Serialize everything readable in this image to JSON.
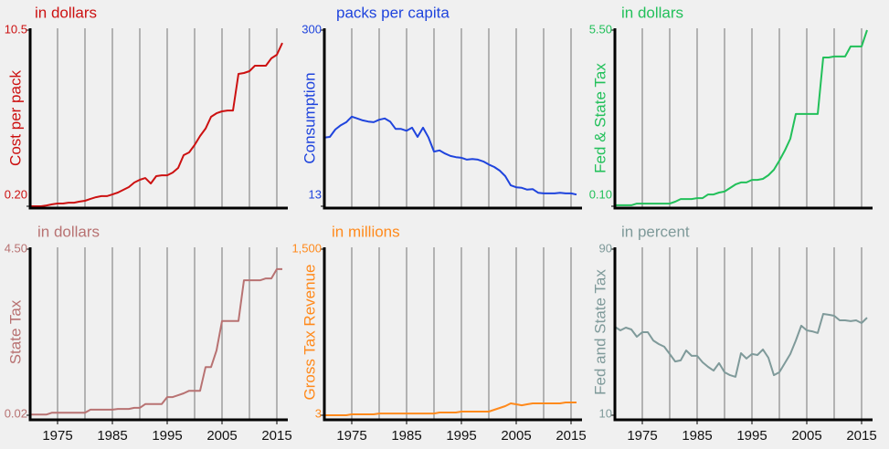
{
  "chart_data": [
    {
      "type": "line",
      "title": "in dollars",
      "ylabel": "Cost per pack",
      "color": "#cc1111",
      "x": [
        1970,
        1971,
        1972,
        1973,
        1974,
        1975,
        1976,
        1977,
        1978,
        1979,
        1980,
        1981,
        1982,
        1983,
        1984,
        1985,
        1986,
        1987,
        1988,
        1989,
        1990,
        1991,
        1992,
        1993,
        1994,
        1995,
        1996,
        1997,
        1998,
        1999,
        2000,
        2001,
        2002,
        2003,
        2004,
        2005,
        2006,
        2007,
        2008,
        2009,
        2010,
        2011,
        2012,
        2013,
        2014,
        2015,
        2016
      ],
      "values": [
        0.2,
        0.2,
        0.2,
        0.25,
        0.31,
        0.36,
        0.36,
        0.41,
        0.41,
        0.47,
        0.52,
        0.63,
        0.73,
        0.79,
        0.79,
        0.89,
        1.0,
        1.16,
        1.32,
        1.59,
        1.75,
        1.85,
        1.53,
        1.96,
        2.01,
        2.01,
        2.17,
        2.44,
        3.19,
        3.35,
        3.78,
        4.31,
        4.74,
        5.43,
        5.64,
        5.75,
        5.8,
        5.8,
        7.94,
        7.99,
        8.1,
        8.42,
        8.42,
        8.42,
        8.85,
        9.06,
        9.75
      ],
      "xlim": [
        1970,
        2017
      ],
      "ylim": [
        0.2,
        10.5
      ],
      "yticks": [
        {
          "value": 0.2,
          "label": "0.20"
        },
        10.5
      ],
      "xgrid": [
        1975,
        1980,
        1985,
        1990,
        1995,
        2000,
        2005,
        2010,
        2015
      ]
    },
    {
      "type": "line",
      "title": "packs per capita",
      "ylabel": "Consumption",
      "color": "#1f44dd",
      "x": [
        1970,
        1971,
        1972,
        1973,
        1974,
        1975,
        1976,
        1977,
        1978,
        1979,
        1980,
        1981,
        1982,
        1983,
        1984,
        1985,
        1986,
        1987,
        1988,
        1989,
        1990,
        1991,
        1992,
        1993,
        1994,
        1995,
        1996,
        1997,
        1998,
        1999,
        2000,
        2001,
        2002,
        2003,
        2004,
        2005,
        2006,
        2007,
        2008,
        2009,
        2010,
        2011,
        2012,
        2013,
        2014,
        2015,
        2016
      ],
      "values": [
        125,
        126,
        138,
        145,
        150,
        159,
        156,
        153,
        151,
        150,
        154,
        156,
        151,
        139,
        139,
        136,
        141,
        126,
        141,
        125,
        102,
        104,
        99,
        95,
        93,
        92,
        89,
        90,
        89,
        86,
        81,
        77,
        71,
        62,
        47,
        44,
        43,
        40,
        41,
        35,
        34,
        34,
        34,
        35,
        34,
        34,
        32
      ],
      "xlim": [
        1970,
        2017
      ],
      "ylim": [
        13,
        300
      ],
      "yticks": [
        13,
        300
      ],
      "xgrid": [
        1975,
        1980,
        1985,
        1990,
        1995,
        2000,
        2005,
        2010,
        2015
      ]
    },
    {
      "type": "line",
      "title": "in dollars",
      "ylabel": "Fed & State Tax",
      "color": "#22c05a",
      "x": [
        1970,
        1971,
        1972,
        1973,
        1974,
        1975,
        1976,
        1977,
        1978,
        1979,
        1980,
        1981,
        1982,
        1983,
        1984,
        1985,
        1986,
        1987,
        1988,
        1989,
        1990,
        1991,
        1992,
        1993,
        1994,
        1995,
        1996,
        1997,
        1998,
        1999,
        2000,
        2001,
        2002,
        2003,
        2004,
        2005,
        2006,
        2007,
        2008,
        2009,
        2010,
        2011,
        2012,
        2013,
        2014,
        2015,
        2016
      ],
      "values": [
        0.13,
        0.13,
        0.13,
        0.13,
        0.18,
        0.18,
        0.18,
        0.18,
        0.18,
        0.18,
        0.18,
        0.24,
        0.32,
        0.32,
        0.32,
        0.35,
        0.35,
        0.46,
        0.46,
        0.52,
        0.55,
        0.66,
        0.77,
        0.83,
        0.83,
        0.91,
        0.91,
        0.94,
        1.05,
        1.22,
        1.5,
        1.81,
        2.17,
        2.93,
        2.93,
        2.93,
        2.93,
        2.93,
        4.66,
        4.66,
        4.69,
        4.69,
        4.69,
        5.0,
        5.0,
        5.0,
        5.5
      ],
      "xlim": [
        1970,
        2017
      ],
      "ylim": [
        0.1,
        5.5
      ],
      "yticks": [
        {
          "value": 0.1,
          "label": "0.10"
        },
        {
          "value": 5.5,
          "label": "5.50"
        }
      ],
      "xgrid": [
        1975,
        1980,
        1985,
        1990,
        1995,
        2000,
        2005,
        2010,
        2015
      ]
    },
    {
      "type": "line",
      "title": "in dollars",
      "ylabel": "State Tax",
      "color": "#b87272",
      "x": [
        1970,
        1971,
        1972,
        1973,
        1974,
        1975,
        1976,
        1977,
        1978,
        1979,
        1980,
        1981,
        1982,
        1983,
        1984,
        1985,
        1986,
        1987,
        1988,
        1989,
        1990,
        1991,
        1992,
        1993,
        1994,
        1995,
        1996,
        1997,
        1998,
        1999,
        2000,
        2001,
        2002,
        2003,
        2004,
        2005,
        2006,
        2007,
        2008,
        2009,
        2010,
        2011,
        2012,
        2013,
        2014,
        2015,
        2016
      ],
      "values": [
        0.04,
        0.04,
        0.04,
        0.04,
        0.09,
        0.09,
        0.09,
        0.09,
        0.09,
        0.09,
        0.09,
        0.17,
        0.17,
        0.17,
        0.17,
        0.17,
        0.19,
        0.19,
        0.19,
        0.22,
        0.22,
        0.32,
        0.32,
        0.32,
        0.32,
        0.51,
        0.51,
        0.56,
        0.61,
        0.68,
        0.68,
        0.68,
        1.32,
        1.32,
        1.77,
        2.56,
        2.56,
        2.56,
        2.56,
        3.66,
        3.66,
        3.66,
        3.66,
        3.71,
        3.71,
        3.96,
        3.96
      ],
      "xlim": [
        1970,
        2017
      ],
      "ylim": [
        0.02,
        4.5
      ],
      "yticks": [
        {
          "value": 0.02,
          "label": "0.02"
        },
        {
          "value": 4.5,
          "label": "4.50"
        }
      ],
      "xgrid": [
        1975,
        1980,
        1985,
        1990,
        1995,
        2000,
        2005,
        2010,
        2015
      ],
      "xticks": [
        1975,
        1985,
        1995,
        2005,
        2015
      ]
    },
    {
      "type": "line",
      "title": "in millions",
      "ylabel": "Gross Tax Revenue",
      "color": "#ff8a1c",
      "x": [
        1970,
        1971,
        1972,
        1973,
        1974,
        1975,
        1976,
        1977,
        1978,
        1979,
        1980,
        1981,
        1982,
        1983,
        1984,
        1985,
        1986,
        1987,
        1988,
        1989,
        1990,
        1991,
        1992,
        1993,
        1994,
        1995,
        1996,
        1997,
        1998,
        1999,
        2000,
        2001,
        2002,
        2003,
        2004,
        2005,
        2006,
        2007,
        2008,
        2009,
        2010,
        2011,
        2012,
        2013,
        2014,
        2015,
        2016
      ],
      "values": [
        3,
        3,
        3,
        3,
        3,
        11,
        11,
        11,
        11,
        11,
        19,
        19,
        19,
        19,
        19,
        19,
        19,
        19,
        19,
        19,
        19,
        28,
        28,
        28,
        28,
        36,
        36,
        36,
        36,
        36,
        36,
        52,
        69,
        85,
        110,
        102,
        93,
        102,
        110,
        110,
        110,
        110,
        110,
        110,
        118,
        118,
        118
      ],
      "xlim": [
        1970,
        2017
      ],
      "ylim": [
        3,
        1500
      ],
      "yticks": [
        3,
        {
          "value": 1500,
          "label": "1,500"
        }
      ],
      "xgrid": [
        1975,
        1980,
        1985,
        1990,
        1995,
        2000,
        2005,
        2010,
        2015
      ],
      "xticks": [
        1975,
        1985,
        1995,
        2005,
        2015
      ]
    },
    {
      "type": "line",
      "title": "in percent",
      "ylabel": "Fed and State Tax",
      "color": "#7f9a9a",
      "x": [
        1970,
        1971,
        1972,
        1973,
        1974,
        1975,
        1976,
        1977,
        1978,
        1979,
        1980,
        1981,
        1982,
        1983,
        1984,
        1985,
        1986,
        1987,
        1988,
        1989,
        1990,
        1991,
        1992,
        1993,
        1994,
        1995,
        1996,
        1997,
        1998,
        1999,
        2000,
        2001,
        2002,
        2003,
        2004,
        2005,
        2006,
        2007,
        2008,
        2009,
        2010,
        2011,
        2012,
        2013,
        2014,
        2015,
        2016
      ],
      "values": [
        52.6,
        50.9,
        52.2,
        51.3,
        47.8,
        50.0,
        50.0,
        46.0,
        44.3,
        43.0,
        39.5,
        35.9,
        36.4,
        41.2,
        38.6,
        38.6,
        35.5,
        33.3,
        31.5,
        35.1,
        30.7,
        29.3,
        28.5,
        39.9,
        37.3,
        39.5,
        39.0,
        41.7,
        37.7,
        29.3,
        30.7,
        35.1,
        39.5,
        46.0,
        53.1,
        50.9,
        50.4,
        49.6,
        58.8,
        58.4,
        57.9,
        55.7,
        55.7,
        55.3,
        55.7,
        54.4,
        57.0
      ],
      "xlim": [
        1970,
        2017
      ],
      "ylim": [
        10,
        90
      ],
      "yticks": [
        10,
        90
      ],
      "xgrid": [
        1975,
        1980,
        1985,
        1990,
        1995,
        2000,
        2005,
        2010,
        2015
      ],
      "xticks": [
        1975,
        1985,
        1995,
        2005,
        2015
      ]
    }
  ]
}
